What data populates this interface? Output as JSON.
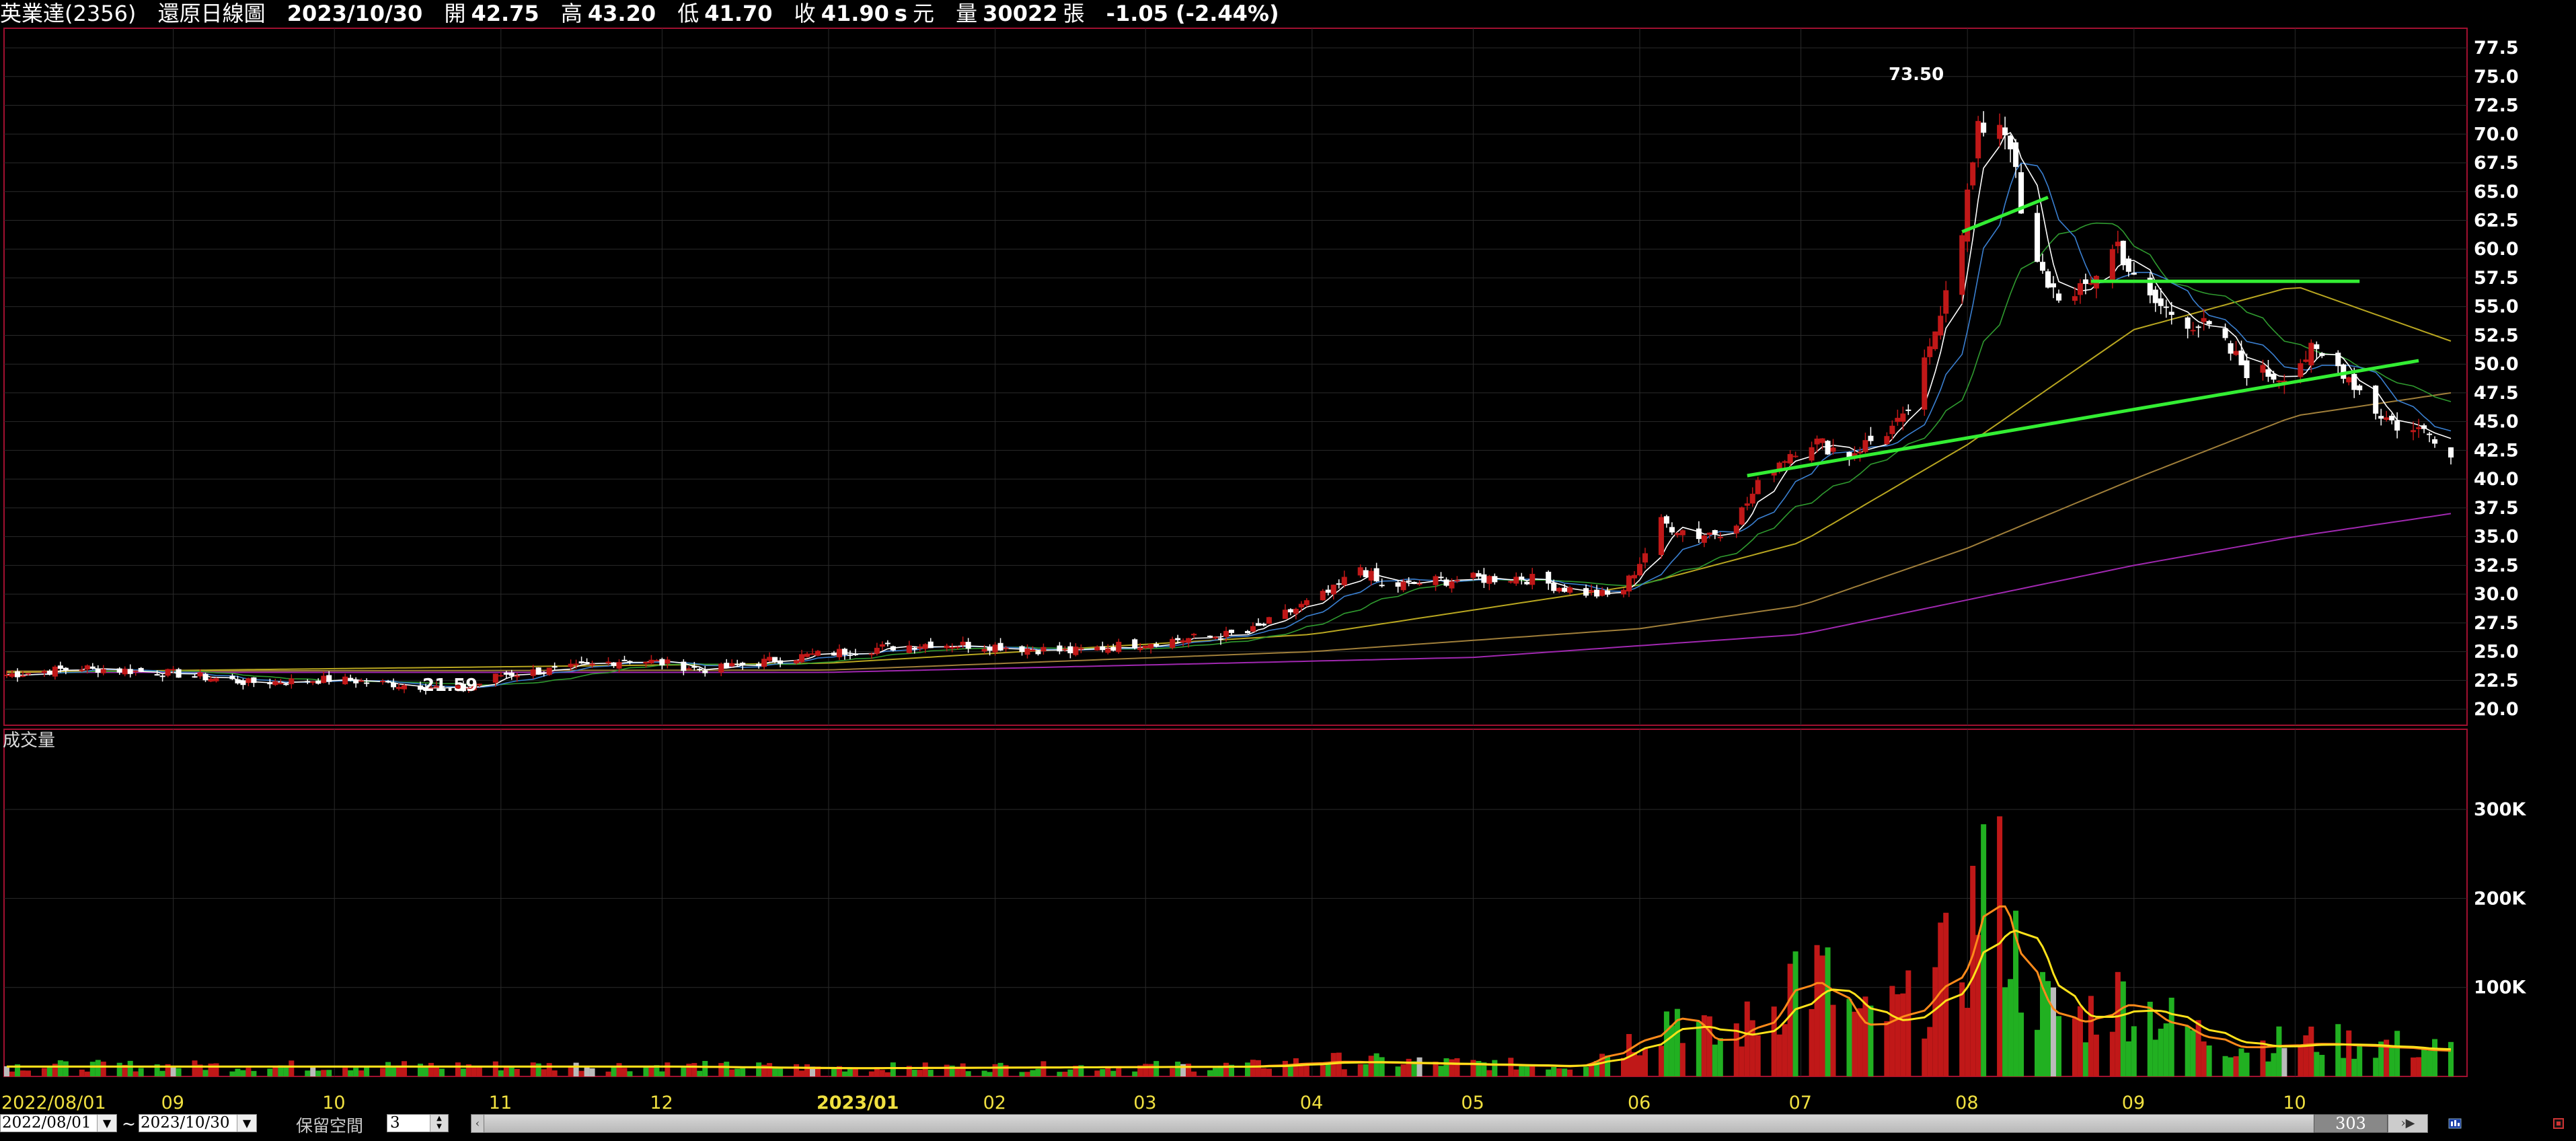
{
  "header": {
    "stock": "英業達(2356)",
    "chart_name": "還原日線圖",
    "date": "2023/10/30",
    "open_label": "開",
    "open": "42.75",
    "high_label": "高",
    "high": "43.20",
    "low_label": "低",
    "low": "41.70",
    "close_label": "收",
    "close": "41.90",
    "close_flag": "s",
    "unit": "元",
    "volume_label": "量",
    "volume": "30022",
    "volume_unit": "張",
    "change": "-1.05 (-2.44%)"
  },
  "volume_pane": {
    "label": "成交量"
  },
  "annotations": {
    "peak": "73.50",
    "trough": "21.59"
  },
  "controls": {
    "start_date": "2022/08/01",
    "tilde": "~",
    "end_date": "2023/10/30",
    "keep_space_label": "保留空間",
    "keep_space_value": "3",
    "scroll_value": "303"
  },
  "colors": {
    "up": "#c01818",
    "down": "#21b021",
    "flat": "#ffffff",
    "ma5": "#ffffff",
    "ma10": "#3a7fd0",
    "ma20": "#2f9a2f",
    "ma60": "#b8a620",
    "ma120": "#a07f3a",
    "ma240": "#a028b0",
    "trend": "#33ee33",
    "vol_ma_a": "#ff8a1a",
    "vol_ma_b": "#ffe21a",
    "grid": "#2a2a2a",
    "frame": "#a01030"
  },
  "chart_data": [
    {
      "type": "candlestick",
      "title": "還原日線圖",
      "x_range": [
        "2022/08/01",
        "2023/10/30"
      ],
      "month_labels": [
        "2022/08/01",
        "09",
        "10",
        "11",
        "12",
        "2023/01",
        "02",
        "03",
        "04",
        "05",
        "06",
        "07",
        "08",
        "09",
        "10"
      ],
      "y_ticks": [
        "77.5",
        "75.0",
        "72.5",
        "70.0",
        "67.5",
        "65.0",
        "62.5",
        "60.0",
        "57.5",
        "55.0",
        "52.5",
        "50.0",
        "47.5",
        "45.0",
        "42.5",
        "40.0",
        "37.5",
        "35.0",
        "32.5",
        "30.0",
        "27.5",
        "25.0",
        "22.5",
        "20.0"
      ],
      "ylim": [
        18.6,
        79.2
      ],
      "close_anchors": [
        [
          "2022/08/01",
          23.0
        ],
        [
          "2022/08/15",
          23.6
        ],
        [
          "2022/09/01",
          23.1
        ],
        [
          "2022/09/15",
          22.3
        ],
        [
          "2022/10/01",
          22.6
        ],
        [
          "2022/10/25",
          21.7
        ],
        [
          "2022/11/01",
          23.0
        ],
        [
          "2022/11/15",
          23.6
        ],
        [
          "2022/11/25",
          24.4
        ],
        [
          "2022/12/10",
          23.4
        ],
        [
          "2022/12/25",
          24.5
        ],
        [
          "2023/01/10",
          25.3
        ],
        [
          "2023/01/20",
          25.7
        ],
        [
          "2023/02/01",
          25.5
        ],
        [
          "2023/02/15",
          25.0
        ],
        [
          "2023/03/01",
          25.8
        ],
        [
          "2023/03/20",
          26.6
        ],
        [
          "2023/03/28",
          28.5
        ],
        [
          "2023/04/05",
          30.3
        ],
        [
          "2023/04/10",
          32.4
        ],
        [
          "2023/04/14",
          30.6
        ],
        [
          "2023/04/25",
          31.2
        ],
        [
          "2023/05/10",
          31.5
        ],
        [
          "2023/05/20",
          30.3
        ],
        [
          "2023/05/28",
          29.7
        ],
        [
          "2023/06/01",
          32.8
        ],
        [
          "2023/06/05",
          36.2
        ],
        [
          "2023/06/12",
          35.1
        ],
        [
          "2023/06/18",
          35.8
        ],
        [
          "2023/06/25",
          40.8
        ],
        [
          "2023/07/02",
          43.5
        ],
        [
          "2023/07/10",
          42.2
        ],
        [
          "2023/07/20",
          45.0
        ],
        [
          "2023/07/25",
          51.0
        ],
        [
          "2023/07/28",
          57.0
        ],
        [
          "2023/07/31",
          62.0
        ],
        [
          "2023/08/03",
          70.0
        ],
        [
          "2023/08/06",
          72.0
        ],
        [
          "2023/08/09",
          69.5
        ],
        [
          "2023/08/12",
          59.5
        ],
        [
          "2023/08/17",
          56.5
        ],
        [
          "2023/08/21",
          55.5
        ],
        [
          "2023/08/25",
          58.0
        ],
        [
          "2023/08/29",
          60.5
        ],
        [
          "2023/09/02",
          56.0
        ],
        [
          "2023/09/08",
          54.5
        ],
        [
          "2023/09/15",
          53.0
        ],
        [
          "2023/09/22",
          49.5
        ],
        [
          "2023/09/28",
          49.0
        ],
        [
          "2023/10/04",
          51.0
        ],
        [
          "2023/10/10",
          49.5
        ],
        [
          "2023/10/16",
          46.0
        ],
        [
          "2023/10/22",
          44.0
        ],
        [
          "2023/10/26",
          44.5
        ],
        [
          "2023/10/30",
          41.9
        ]
      ],
      "ma_anchors": {
        "ma60": [
          [
            "2022/08/01",
            23.2
          ],
          [
            "2023/01/01",
            24.0
          ],
          [
            "2023/04/01",
            26.5
          ],
          [
            "2023/06/01",
            30.8
          ],
          [
            "2023/07/01",
            34.5
          ],
          [
            "2023/08/01",
            43.0
          ],
          [
            "2023/09/01",
            53.0
          ],
          [
            "2023/10/01",
            56.8
          ],
          [
            "2023/10/30",
            52.0
          ]
        ],
        "ma120": [
          [
            "2022/08/01",
            23.3
          ],
          [
            "2023/01/01",
            23.4
          ],
          [
            "2023/04/01",
            25.0
          ],
          [
            "2023/06/01",
            27.0
          ],
          [
            "2023/07/01",
            29.0
          ],
          [
            "2023/08/01",
            34.0
          ],
          [
            "2023/09/01",
            40.0
          ],
          [
            "2023/10/01",
            45.5
          ],
          [
            "2023/10/30",
            47.5
          ]
        ],
        "ma240": [
          [
            "2022/08/01",
            23.2
          ],
          [
            "2023/01/01",
            23.2
          ],
          [
            "2023/05/01",
            24.5
          ],
          [
            "2023/07/01",
            26.5
          ],
          [
            "2023/08/01",
            29.5
          ],
          [
            "2023/09/01",
            32.5
          ],
          [
            "2023/10/01",
            35.0
          ],
          [
            "2023/10/30",
            37.0
          ]
        ]
      },
      "trendlines": [
        [
          [
            "2023/07/31",
            61.5
          ],
          [
            "2023/08/16",
            64.5
          ]
        ],
        [
          [
            "2023/08/24",
            57.2
          ],
          [
            "2023/10/13",
            57.2
          ]
        ],
        [
          [
            "2023/06/21",
            40.3
          ],
          [
            "2023/10/24",
            50.3
          ]
        ]
      ]
    },
    {
      "type": "bar",
      "title": "成交量",
      "y_ticks": [
        "300K",
        "200K",
        "100K"
      ],
      "ylim": [
        0,
        390
      ],
      "volume_anchors_k": [
        [
          "2022/08/01",
          12
        ],
        [
          "2022/12/01",
          12
        ],
        [
          "2023/01/01",
          10
        ],
        [
          "2023/03/20",
          12
        ],
        [
          "2023/04/05",
          18
        ],
        [
          "2023/05/20",
          12
        ],
        [
          "2023/06/01",
          45
        ],
        [
          "2023/06/08",
          75
        ],
        [
          "2023/06/15",
          40
        ],
        [
          "2023/06/25",
          70
        ],
        [
          "2023/06/30",
          120
        ],
        [
          "2023/07/05",
          110
        ],
        [
          "2023/07/12",
          60
        ],
        [
          "2023/07/22",
          80
        ],
        [
          "2023/07/28",
          120
        ],
        [
          "2023/08/01",
          150
        ],
        [
          "2023/08/04",
          240
        ],
        [
          "2023/08/07",
          200
        ],
        [
          "2023/08/12",
          100
        ],
        [
          "2023/08/20",
          60
        ],
        [
          "2023/08/30",
          90
        ],
        [
          "2023/09/10",
          55
        ],
        [
          "2023/09/20",
          35
        ],
        [
          "2023/10/05",
          40
        ],
        [
          "2023/10/20",
          35
        ],
        [
          "2023/10/30",
          30
        ]
      ]
    }
  ]
}
